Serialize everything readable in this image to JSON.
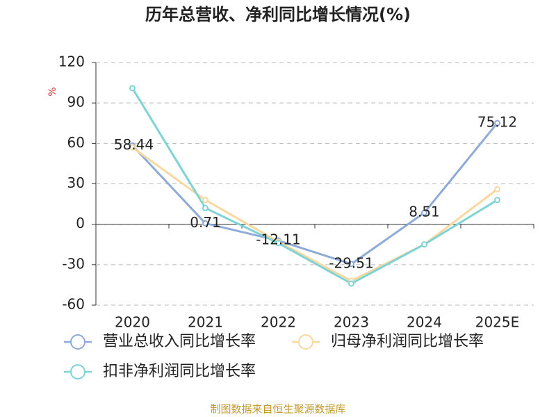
{
  "chart_data": {
    "type": "line",
    "title": "历年总营收、净利同比增长情况(%)",
    "y_label": "%",
    "categories": [
      "2020",
      "2021",
      "2022",
      "2023",
      "2024",
      "2025E"
    ],
    "series": [
      {
        "name": "营业总收入同比增长率",
        "color": "#8eaad8",
        "values": [
          58.44,
          0.71,
          -12.11,
          -29.51,
          8.51,
          75.12
        ],
        "show_labels": true
      },
      {
        "name": "归母净利润同比增长率",
        "color": "#f8d8a0",
        "values": [
          57,
          18,
          -13,
          -42,
          -15,
          26
        ],
        "show_labels": false
      },
      {
        "name": "扣非净利润同比增长率",
        "color": "#7ed3d6",
        "values": [
          101,
          12,
          -14,
          -44,
          -15,
          18
        ],
        "show_labels": false
      }
    ],
    "ylim": [
      -60,
      120
    ],
    "yticks": [
      -60,
      -30,
      0,
      30,
      60,
      90,
      120
    ],
    "grid": true,
    "source": "制图数据来自恒生聚源数据库"
  }
}
